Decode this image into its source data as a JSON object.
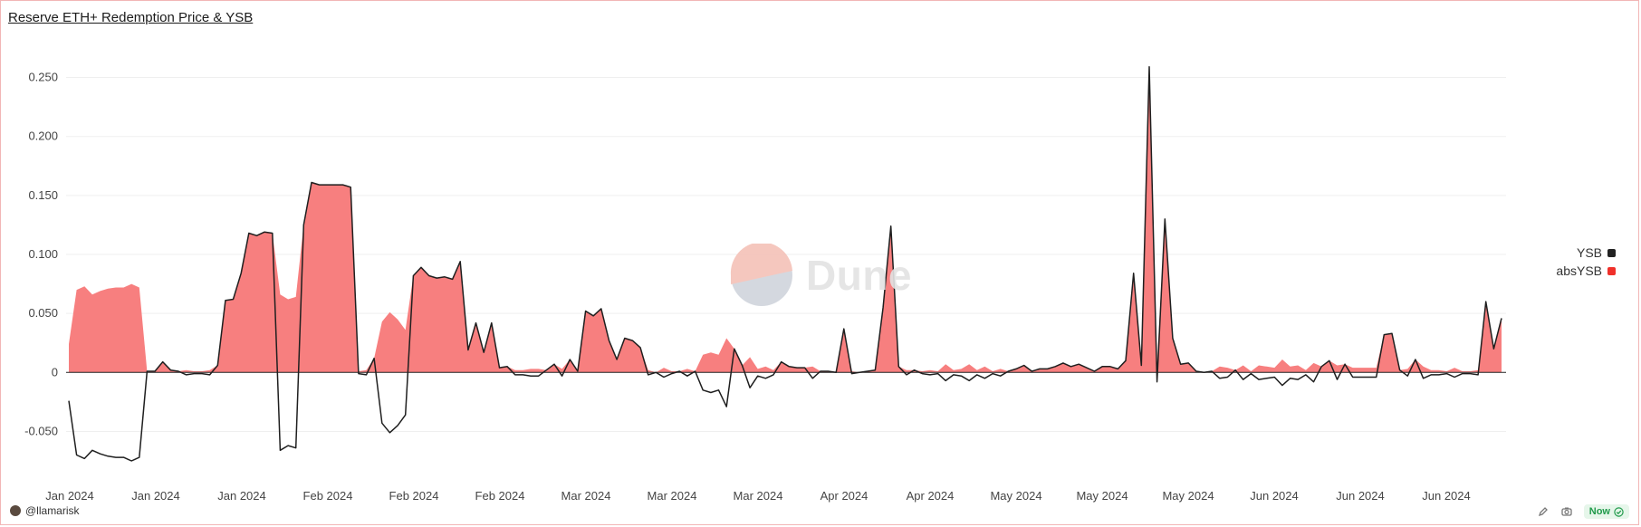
{
  "title": "Reserve ETH+ Redemption Price & YSB",
  "watermark": "Dune",
  "footer": {
    "author": "@llamarisk",
    "status": "Now"
  },
  "colors": {
    "line": "#1f1f1f",
    "area": "#f77f7f",
    "grid": "#efefef",
    "watermark_left": "#f5c2b8",
    "watermark_right": "#d0d4dc"
  },
  "chart_data": {
    "type": "line",
    "ylim": [
      -0.065,
      0.265
    ],
    "yticks": [
      {
        "value": 0.25,
        "label": "0.250"
      },
      {
        "value": 0.2,
        "label": "0.200"
      },
      {
        "value": 0.15,
        "label": "0.150"
      },
      {
        "value": 0.1,
        "label": "0.100"
      },
      {
        "value": 0.05,
        "label": "0.050"
      },
      {
        "value": 0,
        "label": "0"
      },
      {
        "value": -0.05,
        "label": "-0.050"
      }
    ],
    "xticks": [
      "Jan 2024",
      "Jan 2024",
      "Jan 2024",
      "Feb 2024",
      "Feb 2024",
      "Feb 2024",
      "Mar 2024",
      "Mar 2024",
      "Mar 2024",
      "Apr 2024",
      "Apr 2024",
      "May 2024",
      "May 2024",
      "May 2024",
      "Jun 2024",
      "Jun 2024",
      "Jun 2024"
    ],
    "grid": true,
    "legend_position": "right",
    "series": [
      {
        "name": "YSB",
        "color": "#222222",
        "values": [
          -0.024,
          -0.07,
          -0.073,
          -0.066,
          -0.069,
          -0.071,
          -0.072,
          -0.072,
          -0.075,
          -0.072,
          0.001,
          0.001,
          0.009,
          0.002,
          0.001,
          -0.002,
          -0.001,
          -0.001,
          -0.002,
          0.006,
          0.061,
          0.062,
          0.084,
          0.118,
          0.116,
          0.119,
          0.118,
          -0.066,
          -0.062,
          -0.064,
          0.125,
          0.161,
          0.159,
          0.159,
          0.159,
          0.159,
          0.157,
          -0.001,
          -0.002,
          0.012,
          -0.043,
          -0.051,
          -0.045,
          -0.036,
          0.082,
          0.089,
          0.082,
          0.08,
          0.081,
          0.079,
          0.094,
          0.019,
          0.042,
          0.017,
          0.042,
          0.004,
          0.005,
          -0.002,
          -0.002,
          -0.003,
          -0.003,
          0.002,
          0.007,
          -0.003,
          0.011,
          0.001,
          0.052,
          0.048,
          0.054,
          0.027,
          0.011,
          0.029,
          0.027,
          0.021,
          -0.002,
          0.0,
          -0.004,
          -0.001,
          0.001,
          -0.003,
          0.001,
          -0.015,
          -0.017,
          -0.015,
          -0.029,
          0.02,
          0.006,
          -0.013,
          -0.003,
          -0.005,
          -0.002,
          0.009,
          0.005,
          0.004,
          0.004,
          -0.005,
          0.001,
          0.001,
          0.0,
          0.037,
          -0.001,
          0.0,
          0.001,
          0.002,
          0.055,
          0.124,
          0.005,
          -0.002,
          0.002,
          -0.001,
          -0.002,
          -0.001,
          -0.007,
          -0.002,
          -0.003,
          -0.007,
          -0.002,
          -0.005,
          -0.001,
          -0.003,
          0.001,
          0.003,
          0.006,
          0.001,
          0.003,
          0.003,
          0.005,
          0.008,
          0.005,
          0.007,
          0.004,
          0.001,
          0.005,
          0.005,
          0.003,
          0.01,
          0.084,
          0.006,
          0.259,
          -0.008,
          0.13,
          0.029,
          0.007,
          0.008,
          0.001,
          0.0,
          0.001,
          -0.005,
          -0.004,
          0.002,
          -0.006,
          -0.001,
          -0.006,
          -0.005,
          -0.004,
          -0.011,
          -0.005,
          -0.006,
          -0.002,
          -0.008,
          0.005,
          0.01,
          -0.006,
          0.007,
          -0.004,
          -0.004,
          -0.004,
          -0.004,
          0.032,
          0.033,
          0.002,
          -0.003,
          0.011,
          -0.005,
          -0.002,
          -0.002,
          -0.001,
          -0.004,
          -0.001,
          -0.001,
          -0.002,
          0.06,
          0.02,
          0.046
        ]
      },
      {
        "name": "absYSB",
        "color": "#f0302a",
        "values": [
          0.024,
          0.07,
          0.073,
          0.066,
          0.069,
          0.071,
          0.072,
          0.072,
          0.075,
          0.072,
          0.001,
          0.001,
          0.009,
          0.002,
          0.001,
          0.002,
          0.001,
          0.001,
          0.002,
          0.006,
          0.061,
          0.062,
          0.084,
          0.118,
          0.116,
          0.119,
          0.118,
          0.066,
          0.062,
          0.064,
          0.125,
          0.161,
          0.159,
          0.159,
          0.159,
          0.159,
          0.157,
          0.001,
          0.002,
          0.012,
          0.043,
          0.051,
          0.045,
          0.036,
          0.082,
          0.089,
          0.082,
          0.08,
          0.081,
          0.079,
          0.094,
          0.019,
          0.042,
          0.017,
          0.042,
          0.004,
          0.005,
          0.002,
          0.002,
          0.003,
          0.003,
          0.002,
          0.007,
          0.003,
          0.011,
          0.001,
          0.052,
          0.048,
          0.054,
          0.027,
          0.011,
          0.029,
          0.027,
          0.021,
          0.002,
          0.0,
          0.004,
          0.001,
          0.001,
          0.003,
          0.001,
          0.015,
          0.017,
          0.015,
          0.029,
          0.02,
          0.006,
          0.013,
          0.003,
          0.005,
          0.002,
          0.009,
          0.005,
          0.004,
          0.004,
          0.005,
          0.001,
          0.001,
          0.0,
          0.037,
          0.001,
          0.0,
          0.001,
          0.002,
          0.055,
          0.124,
          0.005,
          0.002,
          0.002,
          0.001,
          0.002,
          0.001,
          0.007,
          0.002,
          0.003,
          0.007,
          0.002,
          0.005,
          0.001,
          0.003,
          0.001,
          0.003,
          0.006,
          0.001,
          0.003,
          0.003,
          0.005,
          0.008,
          0.005,
          0.007,
          0.004,
          0.001,
          0.005,
          0.005,
          0.003,
          0.01,
          0.084,
          0.006,
          0.259,
          0.008,
          0.13,
          0.029,
          0.007,
          0.008,
          0.001,
          0.0,
          0.001,
          0.005,
          0.004,
          0.002,
          0.006,
          0.001,
          0.006,
          0.005,
          0.004,
          0.011,
          0.005,
          0.006,
          0.002,
          0.008,
          0.005,
          0.01,
          0.006,
          0.007,
          0.004,
          0.004,
          0.004,
          0.004,
          0.032,
          0.033,
          0.002,
          0.003,
          0.011,
          0.005,
          0.002,
          0.002,
          0.001,
          0.004,
          0.001,
          0.001,
          0.002,
          0.06,
          0.02,
          0.046
        ]
      }
    ]
  }
}
